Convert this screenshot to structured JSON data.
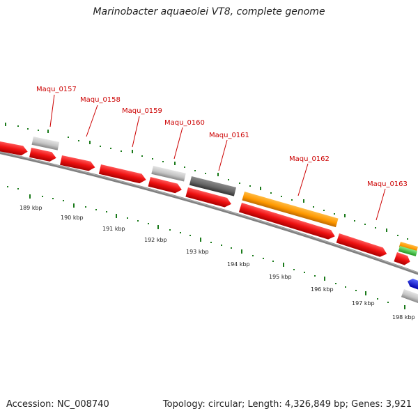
{
  "title": "Marinobacter aquaeolei VT8, complete genome",
  "footer": {
    "accession": "Accession: NC_008740",
    "stats": "Topology: circular; Length: 4,326,849 bp; Genes: 3,921"
  },
  "gene_tags": [
    "Maqu_0157",
    "Maqu_0158",
    "Maqu_0159",
    "Maqu_0160",
    "Maqu_0161",
    "Maqu_0162",
    "Maqu_0163"
  ],
  "scale_labels": [
    "189 kbp",
    "190 kbp",
    "191 kbp",
    "192 kbp",
    "193 kbp",
    "194 kbp",
    "195 kbp",
    "196 kbp",
    "197 kbp",
    "198 kbp"
  ],
  "colors": {
    "cds": "#ee1111",
    "pseudo": "#c8c8c8",
    "dark": "#666666",
    "orange": "#ff9900",
    "green": "#33cc33",
    "blue": "#1111ee",
    "tick": "#1a7a1a",
    "backbone": "#808080",
    "tag_text": "#cc0000"
  }
}
